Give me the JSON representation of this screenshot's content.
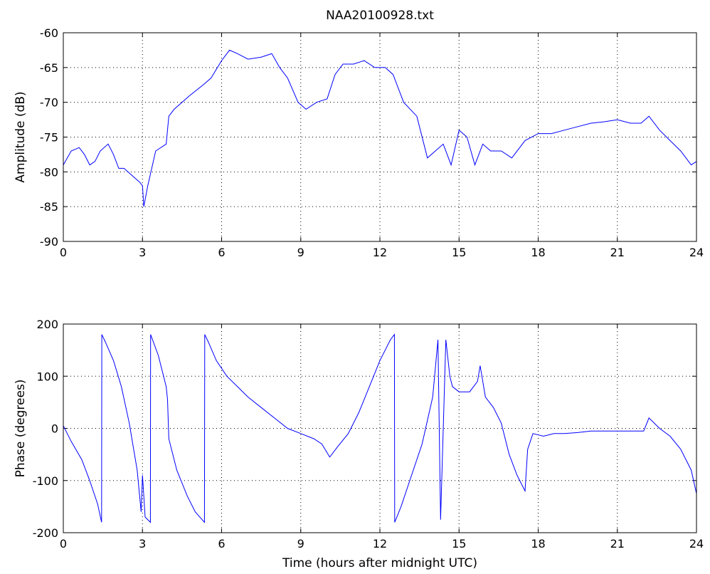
{
  "chart_data": [
    {
      "type": "line",
      "title": "NAA20100928.txt",
      "xlabel": "",
      "ylabel": "Amplitude (dB)",
      "xlim": [
        0,
        24
      ],
      "ylim": [
        -90,
        -60
      ],
      "xticks": [
        0,
        3,
        6,
        9,
        12,
        15,
        18,
        21,
        24
      ],
      "yticks": [
        -90,
        -85,
        -80,
        -75,
        -70,
        -65,
        -60
      ],
      "grid": true,
      "color": "#0000ff",
      "series": [
        {
          "x": [
            0,
            0.3,
            0.6,
            0.8,
            1.0,
            1.2,
            1.4,
            1.7,
            1.9,
            2.1,
            2.3,
            2.6,
            2.9,
            3.0,
            3.05,
            3.2,
            3.5,
            3.9,
            4.0,
            4.2,
            4.8,
            5.3,
            5.6,
            6.0,
            6.3,
            6.6,
            7.0,
            7.5,
            7.9,
            8.2,
            8.5,
            8.9,
            9.2,
            9.6,
            10.0,
            10.3,
            10.6,
            11.0,
            11.4,
            11.8,
            12.2,
            12.5,
            12.9,
            13.4,
            13.8,
            14.1,
            14.4,
            14.7,
            15.0,
            15.3,
            15.6,
            15.9,
            16.2,
            16.6,
            17.0,
            17.5,
            18.0,
            18.5,
            19.0,
            19.5,
            20.0,
            20.5,
            21.0,
            21.5,
            21.9,
            22.2,
            22.6,
            23.0,
            23.4,
            23.8,
            24.0
          ],
          "y": [
            -79,
            -77,
            -76.5,
            -77.5,
            -79,
            -78.5,
            -77,
            -76,
            -77.5,
            -79.5,
            -79.5,
            -80.5,
            -81.5,
            -82,
            -85,
            -82,
            -77,
            -76,
            -72,
            -71,
            -69,
            -67.5,
            -66.5,
            -64,
            -62.5,
            -63,
            -63.8,
            -63.5,
            -63,
            -65,
            -66.5,
            -70,
            -71,
            -70,
            -69.5,
            -66,
            -64.5,
            -64.5,
            -64,
            -65,
            -65,
            -66,
            -70,
            -72,
            -78,
            -77,
            -76,
            -79,
            -74,
            -75,
            -79,
            -76,
            -77,
            -77,
            -78,
            -75.5,
            -74.5,
            -74.5,
            -74,
            -73.5,
            -73,
            -72.8,
            -72.5,
            -73,
            -73,
            -72,
            -74,
            -75.5,
            -77,
            -79,
            -78.5
          ]
        }
      ]
    },
    {
      "type": "line",
      "title": "",
      "xlabel": "Time (hours after midnight UTC)",
      "ylabel": "Phase (degrees)",
      "xlim": [
        0,
        24
      ],
      "ylim": [
        -200,
        200
      ],
      "xticks": [
        0,
        3,
        6,
        9,
        12,
        15,
        18,
        21,
        24
      ],
      "yticks": [
        -200,
        -100,
        0,
        100,
        200
      ],
      "grid": true,
      "color": "#0000ff",
      "series": [
        {
          "x": [
            0,
            0.3,
            0.7,
            1.0,
            1.3,
            1.45,
            1.46,
            1.6,
            1.9,
            2.2,
            2.5,
            2.8,
            2.95,
            3.0,
            3.1,
            3.3,
            3.31,
            3.6,
            3.9,
            3.95,
            4.0,
            4.3,
            4.7,
            5.0,
            5.35,
            5.36,
            5.5,
            5.8,
            6.2,
            6.6,
            7.0,
            7.5,
            8.0,
            8.5,
            9.0,
            9.5,
            9.8,
            10.1,
            10.4,
            10.8,
            11.2,
            11.6,
            12.0,
            12.4,
            12.55,
            12.56,
            12.8,
            13.2,
            13.6,
            14.0,
            14.2,
            14.3,
            14.5,
            14.65,
            14.75,
            15.0,
            15.4,
            15.7,
            15.8,
            16.0,
            16.3,
            16.6,
            16.9,
            17.2,
            17.5,
            17.6,
            17.8,
            18.2,
            18.6,
            19.0,
            19.5,
            20.0,
            20.5,
            21.0,
            21.5,
            22.0,
            22.2,
            22.6,
            23.0,
            23.4,
            23.8,
            24.0
          ],
          "y": [
            5,
            -25,
            -60,
            -100,
            -145,
            -180,
            180,
            165,
            130,
            80,
            10,
            -80,
            -160,
            -90,
            -170,
            -180,
            180,
            140,
            80,
            55,
            -20,
            -80,
            -130,
            -160,
            -180,
            180,
            165,
            130,
            100,
            80,
            60,
            40,
            20,
            0,
            -10,
            -20,
            -30,
            -55,
            -35,
            -10,
            30,
            80,
            130,
            170,
            180,
            -180,
            -150,
            -90,
            -30,
            60,
            170,
            -175,
            170,
            100,
            80,
            70,
            70,
            90,
            120,
            60,
            40,
            10,
            -50,
            -90,
            -120,
            -40,
            -10,
            -15,
            -10,
            -10,
            -8,
            -5,
            -5,
            -5,
            -5,
            -5,
            20,
            0,
            -15,
            -40,
            -80,
            -125
          ]
        }
      ]
    }
  ]
}
